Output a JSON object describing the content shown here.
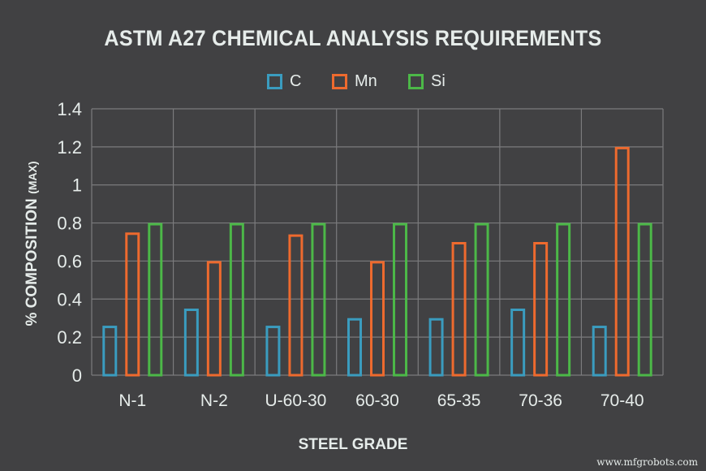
{
  "chart_data": {
    "type": "bar",
    "title": "ASTM A27 CHEMICAL ANALYSIS REQUIREMENTS",
    "xlabel": "STEEL GRADE",
    "ylabel": "% COMPOSITION",
    "ylabel_suffix": "(MAX)",
    "categories": [
      "N-1",
      "N-2",
      "U-60-30",
      "60-30",
      "65-35",
      "70-36",
      "70-40"
    ],
    "series": [
      {
        "name": "C",
        "color": "#3a9cbf",
        "values": [
          0.26,
          0.35,
          0.26,
          0.3,
          0.3,
          0.35,
          0.26
        ]
      },
      {
        "name": "Mn",
        "color": "#ee6a2e",
        "values": [
          0.75,
          0.6,
          0.74,
          0.6,
          0.7,
          0.7,
          1.2
        ]
      },
      {
        "name": "Si",
        "color": "#4cb848",
        "values": [
          0.8,
          0.8,
          0.8,
          0.8,
          0.8,
          0.8,
          0.8
        ]
      }
    ],
    "ylim": [
      0,
      1.4
    ],
    "yticks": [
      "0",
      "0.2",
      "0.4",
      "0.6",
      "0.8",
      "1",
      "1.2",
      "1.4"
    ],
    "grid": true,
    "legend_position": "top",
    "bar_style": "outline"
  },
  "watermark": "www.mfgrobots.com"
}
